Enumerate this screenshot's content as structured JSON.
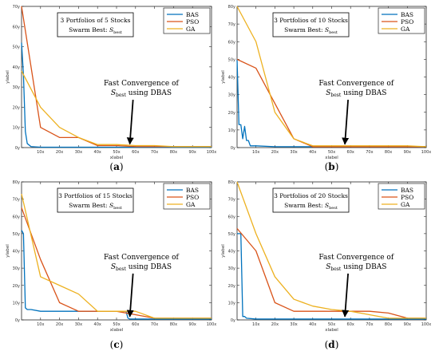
{
  "chart_data": [
    {
      "type": "line",
      "panel_label": "(a)",
      "ylabel": "ylabel",
      "xlabel": "xlabel",
      "xlim": [
        0,
        100
      ],
      "ylim": [
        0,
        70
      ],
      "x_ticks": [
        10,
        20,
        30,
        40,
        50,
        60,
        70,
        80,
        90,
        100
      ],
      "x_tick_labels": [
        "10x",
        "20x",
        "30x",
        "40x",
        "50x",
        "60x",
        "70x",
        "80x",
        "90x",
        "100x"
      ],
      "y_ticks": [
        0,
        10,
        20,
        30,
        40,
        50,
        60,
        70
      ],
      "y_tick_labels": [
        "0y",
        "10y",
        "20y",
        "30y",
        "40y",
        "50y",
        "60y",
        "70y"
      ],
      "annotation_box": {
        "line1": "3 Portfolios of 5 Stocks",
        "line2_prefix": "Swarm Best: ",
        "line2_symbol": "S",
        "line2_sub": "best"
      },
      "arrow_text": {
        "line1": "Fast Convergence of",
        "line2_symbol": "S",
        "line2_sub": "best",
        "line2_suffix": " using DBAS"
      },
      "arrow_target": [
        57,
        1
      ],
      "legend": "top-right",
      "series": [
        {
          "name": "BAS",
          "color": "#0072bd",
          "x": [
            0,
            1,
            2,
            3,
            5,
            10,
            20,
            40,
            60,
            80,
            100
          ],
          "y": [
            52,
            36,
            8,
            2,
            0.5,
            0.2,
            0.2,
            0.2,
            0.2,
            0.2,
            0.2
          ]
        },
        {
          "name": "PSO",
          "color": "#d95319",
          "x": [
            0,
            10,
            20,
            30,
            40,
            50,
            60,
            70,
            80,
            90,
            100
          ],
          "y": [
            70,
            10,
            5,
            5,
            1,
            1,
            0.5,
            0.5,
            0.5,
            0.5,
            0.5
          ]
        },
        {
          "name": "GA",
          "color": "#edb120",
          "x": [
            0,
            10,
            20,
            30,
            40,
            50,
            60,
            70,
            80,
            90,
            100
          ],
          "y": [
            38,
            20,
            10,
            5,
            1.5,
            1.5,
            1,
            1,
            0.5,
            0.5,
            0.5
          ]
        }
      ]
    },
    {
      "type": "line",
      "panel_label": "(b)",
      "ylabel": "ylabel",
      "xlabel": "xlabel",
      "xlim": [
        0,
        100
      ],
      "ylim": [
        0,
        80
      ],
      "x_ticks": [
        10,
        20,
        30,
        40,
        50,
        60,
        70,
        80,
        90,
        100
      ],
      "x_tick_labels": [
        "10x",
        "20x",
        "30x",
        "40x",
        "50x",
        "60x",
        "70x",
        "80x",
        "90x",
        "100x"
      ],
      "y_ticks": [
        0,
        10,
        20,
        30,
        40,
        50,
        60,
        70,
        80
      ],
      "y_tick_labels": [
        "0y",
        "10y",
        "20y",
        "30y",
        "40y",
        "50y",
        "60y",
        "70y",
        "80y"
      ],
      "annotation_box": {
        "line1": "3 Portfolios of 10 Stocks",
        "line2_prefix": "Swarm Best: ",
        "line2_symbol": "S",
        "line2_sub": "best"
      },
      "arrow_text": {
        "line1": "Fast Convergence of",
        "line2_symbol": "S",
        "line2_sub": "best",
        "line2_suffix": " using DBAS"
      },
      "arrow_target": [
        57,
        1
      ],
      "legend": "top-right",
      "series": [
        {
          "name": "BAS",
          "color": "#0072bd",
          "x": [
            0,
            1,
            2,
            3,
            4,
            5,
            6,
            7,
            10,
            20,
            40,
            60,
            80,
            100
          ],
          "y": [
            50,
            13,
            13,
            5,
            12,
            4,
            4,
            1,
            1,
            0.5,
            0.5,
            0.5,
            0.5,
            0.5
          ]
        },
        {
          "name": "PSO",
          "color": "#d95319",
          "x": [
            0,
            10,
            20,
            30,
            40,
            50,
            60,
            70,
            80,
            90,
            100
          ],
          "y": [
            50,
            45,
            25,
            5,
            0.5,
            0.5,
            0.5,
            0.5,
            0.5,
            0.5,
            0.5
          ]
        },
        {
          "name": "GA",
          "color": "#edb120",
          "x": [
            0,
            10,
            20,
            30,
            40,
            50,
            60,
            70,
            80,
            90,
            100
          ],
          "y": [
            80,
            60,
            20,
            5,
            1,
            1,
            1,
            1,
            1,
            1,
            0.5
          ]
        }
      ]
    },
    {
      "type": "line",
      "panel_label": "(c)",
      "ylabel": "ylabel",
      "xlabel": "xlabel",
      "xlim": [
        0,
        100
      ],
      "ylim": [
        0,
        80
      ],
      "x_ticks": [
        10,
        20,
        30,
        40,
        50,
        60,
        70,
        80,
        90,
        100
      ],
      "x_tick_labels": [
        "10x",
        "20x",
        "30x",
        "40x",
        "50x",
        "60x",
        "70x",
        "80x",
        "90x",
        "100x"
      ],
      "y_ticks": [
        0,
        10,
        20,
        30,
        40,
        50,
        60,
        70,
        80
      ],
      "y_tick_labels": [
        "0y",
        "10y",
        "20y",
        "30y",
        "40y",
        "50y",
        "60y",
        "70y",
        "80y"
      ],
      "annotation_box": {
        "line1": "3 Portfolios of 15 Stocks",
        "line2_prefix": "Swarm Best: ",
        "line2_symbol": "S",
        "line2_sub": "best"
      },
      "arrow_text": {
        "line1": "Fast Convergence of",
        "line2_symbol": "S",
        "line2_sub": "best",
        "line2_suffix": " using DBAS"
      },
      "arrow_target": [
        57,
        1
      ],
      "legend": "top-right",
      "series": [
        {
          "name": "BAS",
          "color": "#0072bd",
          "x": [
            0,
            1,
            2,
            3,
            5,
            10,
            20,
            40,
            50,
            53,
            55,
            56,
            57,
            100
          ],
          "y": [
            52,
            50,
            7,
            6,
            6,
            5,
            5,
            5,
            5,
            5,
            5,
            1,
            0.5,
            0.5
          ]
        },
        {
          "name": "PSO",
          "color": "#d95319",
          "x": [
            0,
            10,
            20,
            30,
            40,
            50,
            60,
            70,
            80,
            90,
            100
          ],
          "y": [
            65,
            35,
            10,
            5,
            5,
            5,
            3,
            1,
            1,
            1,
            1
          ]
        },
        {
          "name": "GA",
          "color": "#edb120",
          "x": [
            0,
            10,
            20,
            30,
            40,
            50,
            60,
            70,
            80,
            90,
            100
          ],
          "y": [
            73,
            25,
            20,
            15,
            5,
            5,
            5,
            1,
            1,
            1,
            1
          ]
        }
      ]
    },
    {
      "type": "line",
      "panel_label": "(d)",
      "ylabel": "ylabel",
      "xlabel": "xlabel",
      "xlim": [
        0,
        100
      ],
      "ylim": [
        0,
        80
      ],
      "x_ticks": [
        10,
        20,
        30,
        40,
        50,
        60,
        70,
        80,
        90,
        100
      ],
      "x_tick_labels": [
        "10x",
        "20x",
        "30x",
        "40x",
        "50x",
        "60x",
        "70x",
        "80x",
        "90x",
        "100x"
      ],
      "y_ticks": [
        0,
        10,
        20,
        30,
        40,
        50,
        60,
        70,
        80
      ],
      "y_tick_labels": [
        "0y",
        "10y",
        "20y",
        "30y",
        "40y",
        "50y",
        "60y",
        "70y",
        "80y"
      ],
      "annotation_box": {
        "line1": "3 Portfolios of 20 Stocks",
        "line2_prefix": "Swarm Best: ",
        "line2_symbol": "S",
        "line2_sub": "best"
      },
      "arrow_text": {
        "line1": "Fast Convergence of",
        "line2_symbol": "S",
        "line2_sub": "best",
        "line2_suffix": " using DBAS"
      },
      "arrow_target": [
        57,
        1
      ],
      "legend": "top-right",
      "series": [
        {
          "name": "BAS",
          "color": "#0072bd",
          "x": [
            0,
            1,
            2,
            3,
            4,
            5,
            10,
            20,
            40,
            60,
            80,
            100
          ],
          "y": [
            50,
            50,
            50,
            2,
            2,
            1,
            0.5,
            0.5,
            0.5,
            0.5,
            0.5,
            0.5
          ]
        },
        {
          "name": "PSO",
          "color": "#d95319",
          "x": [
            0,
            10,
            20,
            30,
            40,
            50,
            60,
            70,
            80,
            90,
            100
          ],
          "y": [
            53,
            40,
            10,
            5,
            5,
            5,
            5,
            5,
            4,
            1,
            1
          ]
        },
        {
          "name": "GA",
          "color": "#edb120",
          "x": [
            0,
            10,
            20,
            30,
            40,
            50,
            60,
            70,
            80,
            90,
            100
          ],
          "y": [
            80,
            50,
            25,
            12,
            8,
            6,
            5,
            3,
            1,
            1,
            1
          ]
        }
      ]
    }
  ]
}
